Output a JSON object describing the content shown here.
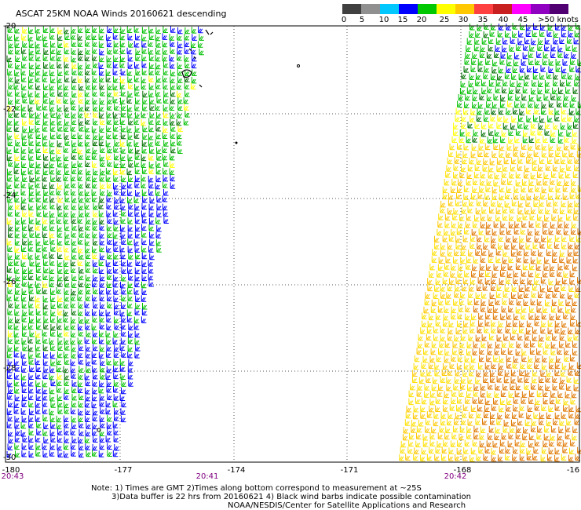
{
  "title": "ASCAT 25KM NOAA Winds 20160621 descending",
  "legend": {
    "labels": [
      "0",
      "5",
      "10",
      "15",
      "20",
      "25",
      "30",
      "35",
      "40",
      "45",
      ">50 knots"
    ],
    "colors": [
      "#404040",
      "#909090",
      "#00c8ff",
      "#0000ff",
      "#00c800",
      "#ffff00",
      "#ffc800",
      "#ff4040",
      "#c82020",
      "#ff00ff",
      "#800080",
      "#500070"
    ]
  },
  "axes": {
    "lat_labels": [
      "-20",
      "-22",
      "-24",
      "-26",
      "-28",
      "-30"
    ],
    "lon_labels": [
      "-180",
      "-177",
      "-174",
      "-171",
      "-168",
      "-16"
    ],
    "time_labels": [
      "20:43",
      "20:41",
      "20:42"
    ]
  },
  "notes": {
    "line1": "Note: 1) Times are GMT 2)Times along bottom correspond to measurement at ~25S",
    "line2": "3)Data buffer is 22 hrs from 20160621 4) Black wind barbs indicate possible contamination",
    "line3": "NOAA/NESDIS/Center for Satellite Applications and Research"
  },
  "swaths": [
    {
      "name": "west-swath",
      "colors_knots": [
        "15",
        "20",
        "25"
      ]
    },
    {
      "name": "east-swath",
      "colors_knots": [
        "15",
        "20",
        "25",
        "30"
      ]
    }
  ]
}
